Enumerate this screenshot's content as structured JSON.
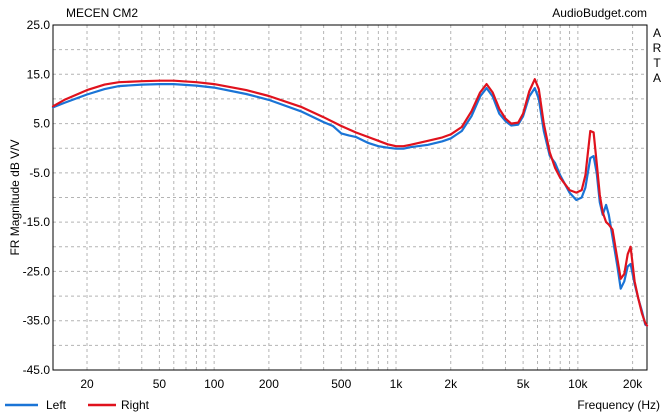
{
  "chart_data": {
    "type": "line",
    "title": "MECEN CM2",
    "watermark": "AudioBudget.com",
    "side_label": "ARTA",
    "xlabel": "Frequency (Hz)",
    "ylabel": "FR Magnitude dB V/V",
    "x_scale": "log",
    "xlim": [
      13,
      24000
    ],
    "ylim": [
      -45,
      25
    ],
    "grid": true,
    "legend_position": "bottom-left",
    "x_ticks": [
      {
        "value": 20,
        "label": "20"
      },
      {
        "value": 50,
        "label": "50"
      },
      {
        "value": 100,
        "label": "100"
      },
      {
        "value": 200,
        "label": "200"
      },
      {
        "value": 500,
        "label": "500"
      },
      {
        "value": 1000,
        "label": "1k"
      },
      {
        "value": 2000,
        "label": "2k"
      },
      {
        "value": 5000,
        "label": "5k"
      },
      {
        "value": 10000,
        "label": "10k"
      },
      {
        "value": 20000,
        "label": "20k"
      }
    ],
    "y_ticks": [
      {
        "value": 25,
        "label": "25.0"
      },
      {
        "value": 15,
        "label": "15.0"
      },
      {
        "value": 5,
        "label": "5.0"
      },
      {
        "value": -5,
        "label": "-5.0"
      },
      {
        "value": -15,
        "label": "-15.0"
      },
      {
        "value": -25,
        "label": "-25.0"
      },
      {
        "value": -35,
        "label": "-35.0"
      },
      {
        "value": -45,
        "label": "-45.0"
      }
    ],
    "series": [
      {
        "name": "Left",
        "color": "#1a74d6",
        "points": [
          [
            13,
            8.3
          ],
          [
            15,
            9.2
          ],
          [
            20,
            10.9
          ],
          [
            25,
            12.0
          ],
          [
            30,
            12.6
          ],
          [
            40,
            12.9
          ],
          [
            50,
            13.0
          ],
          [
            60,
            13.0
          ],
          [
            80,
            12.7
          ],
          [
            100,
            12.3
          ],
          [
            150,
            11.0
          ],
          [
            200,
            9.8
          ],
          [
            300,
            7.5
          ],
          [
            400,
            5.3
          ],
          [
            450,
            4.5
          ],
          [
            500,
            3.0
          ],
          [
            550,
            2.6
          ],
          [
            600,
            2.3
          ],
          [
            700,
            1.1
          ],
          [
            800,
            0.4
          ],
          [
            900,
            0.1
          ],
          [
            1000,
            -0.1
          ],
          [
            1100,
            -0.1
          ],
          [
            1200,
            0.2
          ],
          [
            1500,
            0.7
          ],
          [
            1800,
            1.4
          ],
          [
            2000,
            2.0
          ],
          [
            2300,
            3.5
          ],
          [
            2600,
            6.5
          ],
          [
            2900,
            10.5
          ],
          [
            3150,
            12.2
          ],
          [
            3400,
            10.5
          ],
          [
            3700,
            7.0
          ],
          [
            4000,
            5.5
          ],
          [
            4300,
            4.6
          ],
          [
            4700,
            4.8
          ],
          [
            5000,
            6.5
          ],
          [
            5400,
            10.5
          ],
          [
            5800,
            12.2
          ],
          [
            6100,
            10.0
          ],
          [
            6500,
            3.5
          ],
          [
            7000,
            -1.5
          ],
          [
            7500,
            -3.0
          ],
          [
            8000,
            -5.5
          ],
          [
            9000,
            -9.0
          ],
          [
            9800,
            -10.5
          ],
          [
            10500,
            -10.0
          ],
          [
            11000,
            -8.0
          ],
          [
            11700,
            -2.0
          ],
          [
            12200,
            -1.6
          ],
          [
            12700,
            -5.0
          ],
          [
            13200,
            -11.0
          ],
          [
            13700,
            -13.5
          ],
          [
            14300,
            -11.5
          ],
          [
            14800,
            -13.5
          ],
          [
            15500,
            -18.0
          ],
          [
            16500,
            -24.0
          ],
          [
            17200,
            -28.5
          ],
          [
            18000,
            -27.0
          ],
          [
            18800,
            -24.0
          ],
          [
            19500,
            -23.5
          ],
          [
            20500,
            -27.5
          ],
          [
            21500,
            -30.5
          ],
          [
            22500,
            -33.0
          ],
          [
            23500,
            -35.8
          ],
          [
            24000,
            -36.0
          ]
        ]
      },
      {
        "name": "Right",
        "color": "#e0121d",
        "points": [
          [
            13,
            8.5
          ],
          [
            15,
            9.8
          ],
          [
            20,
            11.8
          ],
          [
            25,
            12.9
          ],
          [
            30,
            13.4
          ],
          [
            40,
            13.6
          ],
          [
            50,
            13.7
          ],
          [
            60,
            13.7
          ],
          [
            80,
            13.4
          ],
          [
            100,
            13.0
          ],
          [
            150,
            11.8
          ],
          [
            200,
            10.6
          ],
          [
            300,
            8.4
          ],
          [
            400,
            6.3
          ],
          [
            500,
            4.5
          ],
          [
            600,
            3.2
          ],
          [
            700,
            2.3
          ],
          [
            800,
            1.5
          ],
          [
            900,
            0.8
          ],
          [
            1000,
            0.4
          ],
          [
            1100,
            0.4
          ],
          [
            1200,
            0.7
          ],
          [
            1500,
            1.5
          ],
          [
            1800,
            2.2
          ],
          [
            2000,
            2.8
          ],
          [
            2300,
            4.3
          ],
          [
            2600,
            7.5
          ],
          [
            2900,
            11.3
          ],
          [
            3150,
            13.0
          ],
          [
            3400,
            11.3
          ],
          [
            3700,
            8.0
          ],
          [
            4000,
            6.0
          ],
          [
            4300,
            5.0
          ],
          [
            4700,
            5.2
          ],
          [
            5000,
            7.0
          ],
          [
            5400,
            11.5
          ],
          [
            5800,
            14.0
          ],
          [
            6100,
            12.0
          ],
          [
            6500,
            5.0
          ],
          [
            7000,
            -0.8
          ],
          [
            7500,
            -4.0
          ],
          [
            8000,
            -6.0
          ],
          [
            9000,
            -8.5
          ],
          [
            9800,
            -9.0
          ],
          [
            10500,
            -8.5
          ],
          [
            11000,
            -5.5
          ],
          [
            11700,
            3.5
          ],
          [
            12200,
            3.2
          ],
          [
            12700,
            -3.0
          ],
          [
            13200,
            -9.5
          ],
          [
            13700,
            -13.0
          ],
          [
            14300,
            -15.0
          ],
          [
            14800,
            -15.5
          ],
          [
            15500,
            -16.5
          ],
          [
            16500,
            -22.5
          ],
          [
            17200,
            -26.5
          ],
          [
            18000,
            -25.5
          ],
          [
            18800,
            -21.5
          ],
          [
            19500,
            -20.0
          ],
          [
            20500,
            -27.0
          ],
          [
            21500,
            -30.5
          ],
          [
            22500,
            -33.5
          ],
          [
            23500,
            -35.5
          ],
          [
            24000,
            -36.0
          ]
        ]
      }
    ]
  }
}
